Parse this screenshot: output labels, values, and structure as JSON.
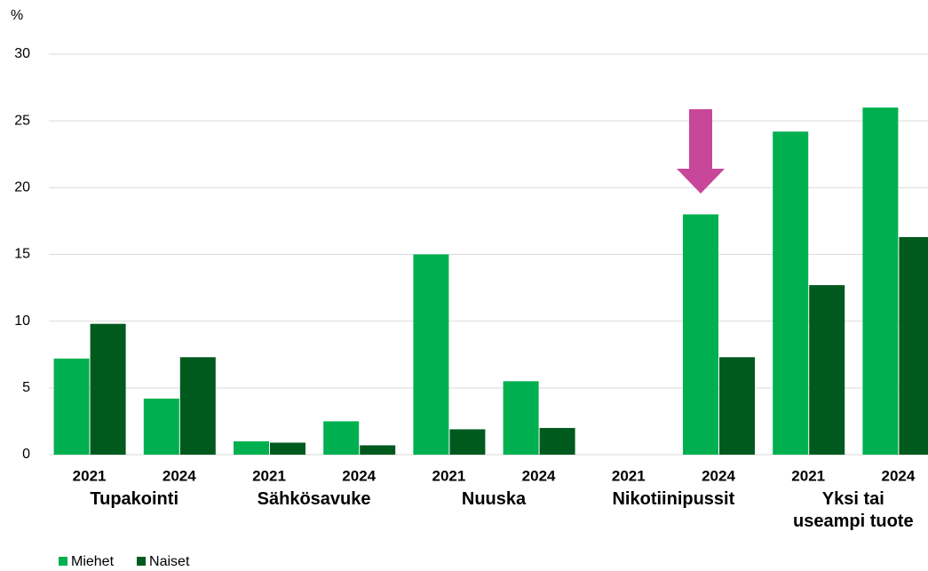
{
  "chart_data": {
    "type": "bar",
    "y_label": "%",
    "categories": [
      "2021",
      "2024",
      "2021",
      "2024",
      "2021",
      "2024",
      "2021",
      "2024",
      "2021",
      "2024"
    ],
    "groups": [
      "Tupakointi",
      "Sähkösavuke",
      "Nuuska",
      "Nikotiinipussit",
      "Yksi tai useampi tuote"
    ],
    "series": [
      {
        "name": "Miehet",
        "color": "#00b050",
        "values": [
          7.2,
          4.2,
          1.0,
          2.5,
          15.0,
          5.5,
          null,
          18.0,
          24.2,
          26.0
        ]
      },
      {
        "name": "Naiset",
        "color": "#005a1e",
        "values": [
          9.8,
          7.3,
          0.9,
          0.7,
          1.9,
          2.0,
          null,
          7.3,
          12.7,
          16.3
        ]
      }
    ],
    "ylim": [
      0,
      30
    ],
    "yticks": [
      0,
      5,
      10,
      15,
      20,
      25,
      30
    ],
    "grid": true,
    "legend": "bottom-left"
  }
}
